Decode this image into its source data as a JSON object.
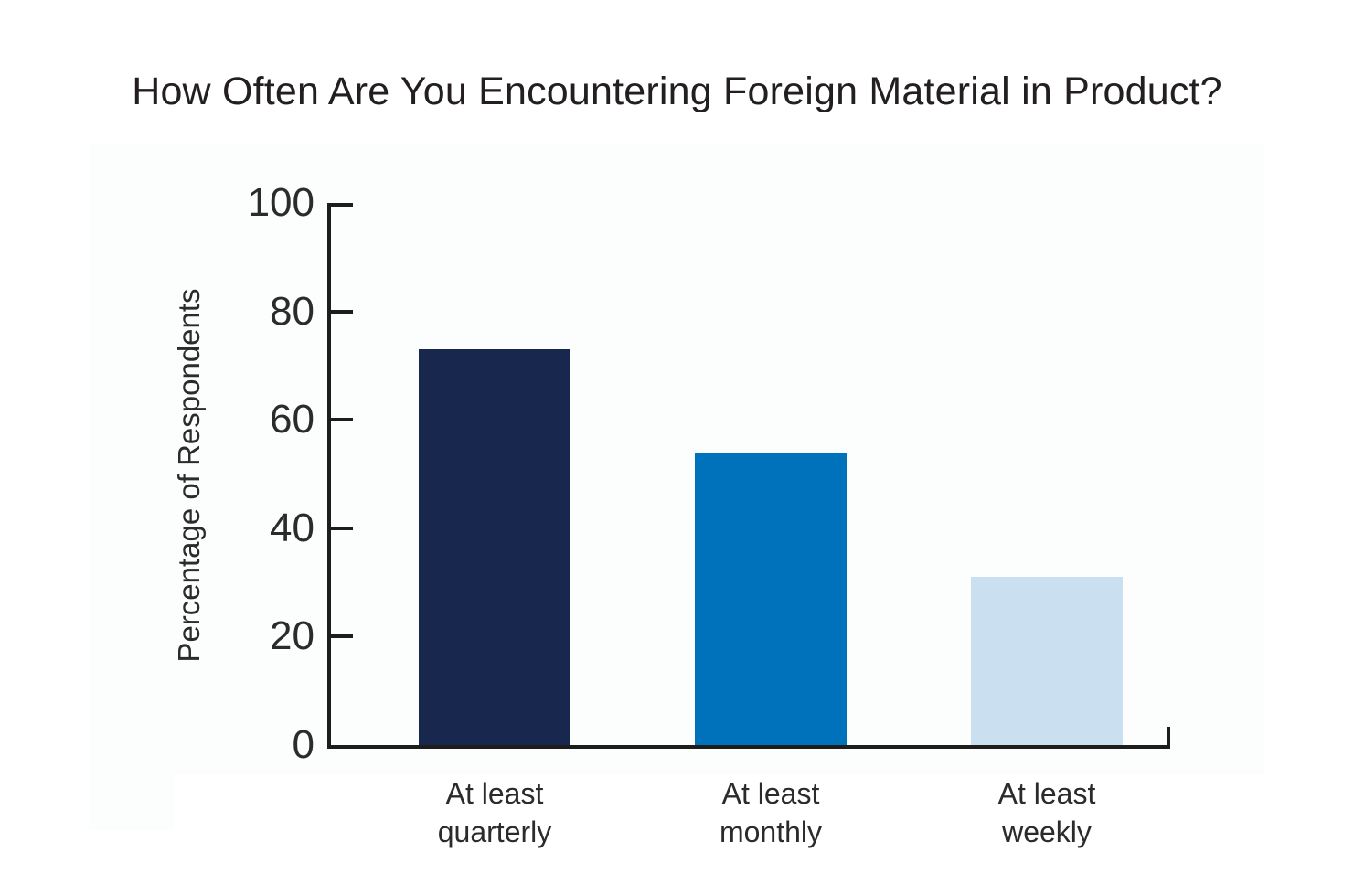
{
  "page": {
    "background_color": "#ffffff",
    "panel_color": "#fcfdfd"
  },
  "chart_data": {
    "type": "bar",
    "title": "How Often Are You Encountering Foreign Material in Product?",
    "categories": [
      "At least\nquarterly",
      "At least\nmonthly",
      "At least\nweekly"
    ],
    "values": [
      73,
      54,
      31
    ],
    "bar_colors": [
      "#17274d",
      "#0072bc",
      "#cadff0"
    ],
    "xlabel": "",
    "ylabel": "Percentage of Respondents",
    "ylim": [
      0,
      100
    ],
    "yticks": [
      0,
      20,
      40,
      60,
      80,
      100
    ],
    "grid": false,
    "legend": "none",
    "axis_color": "#1d1d1b",
    "text_color": "#231f20"
  }
}
